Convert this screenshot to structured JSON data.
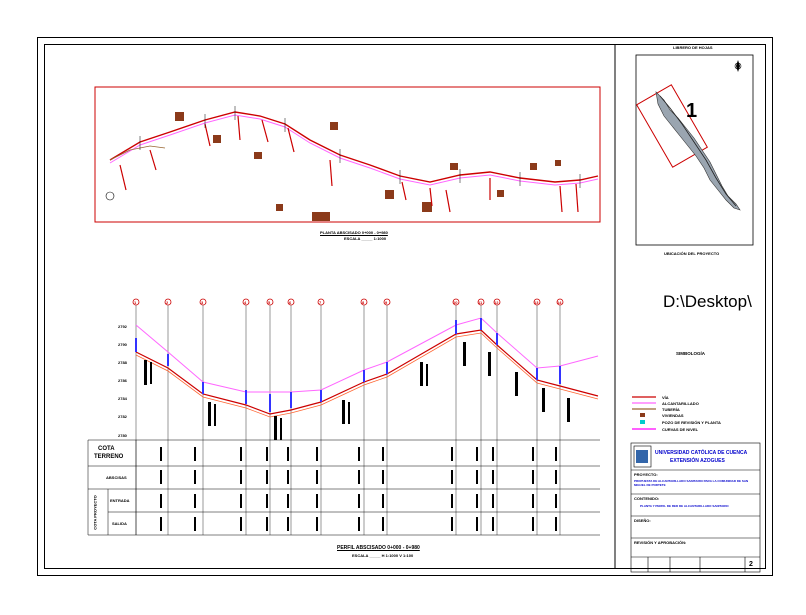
{
  "location": {
    "title": "LIBRERO DE HOJAS",
    "number": "1",
    "caption": "UBICACIÓN DEL PROYECTO"
  },
  "plan": {
    "title": "PLANTA ABSCISADO 0+000 - 0+980",
    "scale": "ESCALA _____ 1:1000"
  },
  "profile": {
    "title": "PERFIL ABSCISADO 0+000 - 0+980",
    "scale": "ESCALA _____ H 1:1000  V 1:100",
    "y_ticks": [
      "2780",
      "2782",
      "2784",
      "2786",
      "2788",
      "2790",
      "2792"
    ],
    "rows": {
      "cota_terreno_1": "COTA",
      "cota_terreno_2": "TERRENO",
      "abscisas": "ABSCISAS",
      "cota_proyecto": "COTA PROYECTO",
      "entrada": "ENTRADA",
      "salida": "SALIDA"
    },
    "node_labels": [
      "1",
      "2",
      "3",
      "4",
      "5",
      "6",
      "7",
      "8",
      "9",
      "10",
      "11",
      "12",
      "13",
      "14"
    ]
  },
  "path_text": "D:\\Desktop\\",
  "legend": {
    "title": "SIMBOLOGÍA",
    "items": [
      "VÍA",
      "ALCANTARILLADO",
      "TUBERÍA",
      "VIVIENDAS",
      "POZO DE REVISIÓN Y PLANTA",
      "CURVAS DE NIVEL"
    ],
    "colors": [
      "#cc0000",
      "#ff66ff",
      "#996633",
      "#8b3a1a",
      "#00cccc",
      "#ff00ff"
    ]
  },
  "title_block": {
    "university_1": "UNIVERSIDAD CATÓLICA DE CUENCA",
    "university_2": "EXTENSIÓN  AZOGUES",
    "project_label": "PROYECTO:",
    "project_text": "PROPUESTA DE ALCANTARILLADO SANITARIO PARA LA COMUNIDAD DE SAN MIGUEL DE PORTETE",
    "content_label": "CONTENIDO:",
    "content_text": "PLANTA Y PERFIL DE RED DE ALCANTARILLADO SANITARIO",
    "design_label": "DISEÑO:",
    "review_label": "REVISIÓN Y APROBACIÓN:",
    "sheet": "2"
  }
}
